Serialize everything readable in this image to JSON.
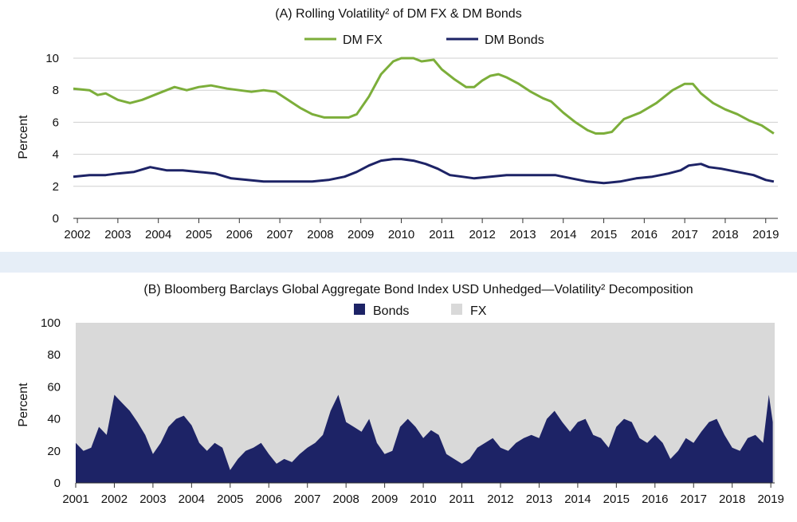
{
  "colors": {
    "fx_line": "#7cae3a",
    "bonds_line": "#1d2366",
    "bonds_area": "#1d2366",
    "fx_area": "#d9d9d9",
    "separator_band": "#e6eef7"
  },
  "chart_data": [
    {
      "type": "line",
      "title": "(A) Rolling Volatility² of DM FX & DM Bonds",
      "ylabel": "Percent",
      "xlabel": "",
      "xlim": [
        2001.9,
        2019.3
      ],
      "ylim": [
        0,
        10
      ],
      "yticks": [
        0,
        2,
        4,
        6,
        8,
        10
      ],
      "xticks": [
        2002,
        2003,
        2004,
        2005,
        2006,
        2007,
        2008,
        2009,
        2010,
        2011,
        2012,
        2013,
        2014,
        2015,
        2016,
        2017,
        2018,
        2019
      ],
      "grid": true,
      "legend_placement": "top-center",
      "series": [
        {
          "name": "DM FX",
          "x": [
            2001.9,
            2002.3,
            2002.5,
            2002.7,
            2003.0,
            2003.3,
            2003.6,
            2004.0,
            2004.4,
            2004.7,
            2005.0,
            2005.3,
            2005.7,
            2006.0,
            2006.3,
            2006.6,
            2006.9,
            2007.2,
            2007.5,
            2007.8,
            2008.1,
            2008.5,
            2008.7,
            2008.9,
            2009.2,
            2009.5,
            2009.8,
            2010.0,
            2010.3,
            2010.5,
            2010.8,
            2011.0,
            2011.3,
            2011.6,
            2011.8,
            2012.0,
            2012.2,
            2012.4,
            2012.6,
            2012.9,
            2013.2,
            2013.5,
            2013.7,
            2014.0,
            2014.3,
            2014.6,
            2014.8,
            2015.0,
            2015.2,
            2015.5,
            2015.9,
            2016.3,
            2016.7,
            2017.0,
            2017.2,
            2017.4,
            2017.7,
            2018.0,
            2018.3,
            2018.6,
            2018.9,
            2019.2
          ],
          "values": [
            8.1,
            8.0,
            7.7,
            7.8,
            7.4,
            7.2,
            7.4,
            7.8,
            8.2,
            8.0,
            8.2,
            8.3,
            8.1,
            8.0,
            7.9,
            8.0,
            7.9,
            7.4,
            6.9,
            6.5,
            6.3,
            6.3,
            6.3,
            6.5,
            7.6,
            9.0,
            9.8,
            10.0,
            10.0,
            9.8,
            9.9,
            9.3,
            8.7,
            8.2,
            8.2,
            8.6,
            8.9,
            9.0,
            8.8,
            8.4,
            7.9,
            7.5,
            7.3,
            6.6,
            6.0,
            5.5,
            5.3,
            5.3,
            5.4,
            6.2,
            6.6,
            7.2,
            8.0,
            8.4,
            8.4,
            7.8,
            7.2,
            6.8,
            6.5,
            6.1,
            5.8,
            5.3
          ]
        },
        {
          "name": "DM Bonds",
          "x": [
            2001.9,
            2002.3,
            2002.7,
            2003.0,
            2003.4,
            2003.8,
            2004.2,
            2004.6,
            2005.0,
            2005.4,
            2005.8,
            2006.2,
            2006.6,
            2007.0,
            2007.4,
            2007.8,
            2008.2,
            2008.6,
            2008.9,
            2009.2,
            2009.5,
            2009.8,
            2010.0,
            2010.3,
            2010.6,
            2010.9,
            2011.2,
            2011.5,
            2011.8,
            2012.2,
            2012.6,
            2013.0,
            2013.4,
            2013.8,
            2014.2,
            2014.6,
            2015.0,
            2015.4,
            2015.8,
            2016.2,
            2016.6,
            2016.9,
            2017.1,
            2017.4,
            2017.6,
            2017.9,
            2018.3,
            2018.7,
            2019.0,
            2019.2
          ],
          "values": [
            2.6,
            2.7,
            2.7,
            2.8,
            2.9,
            3.2,
            3.0,
            3.0,
            2.9,
            2.8,
            2.5,
            2.4,
            2.3,
            2.3,
            2.3,
            2.3,
            2.4,
            2.6,
            2.9,
            3.3,
            3.6,
            3.7,
            3.7,
            3.6,
            3.4,
            3.1,
            2.7,
            2.6,
            2.5,
            2.6,
            2.7,
            2.7,
            2.7,
            2.7,
            2.5,
            2.3,
            2.2,
            2.3,
            2.5,
            2.6,
            2.8,
            3.0,
            3.3,
            3.4,
            3.2,
            3.1,
            2.9,
            2.7,
            2.4,
            2.3
          ]
        }
      ]
    },
    {
      "type": "area",
      "stacked": true,
      "title": "(B) Bloomberg Barclays Global Aggregate Bond Index USD Unhedged—Volatility² Decomposition",
      "ylabel": "Percent",
      "xlabel": "",
      "xlim": [
        2001.0,
        2019.1
      ],
      "ylim": [
        0,
        100
      ],
      "yticks": [
        0,
        20,
        40,
        60,
        80,
        100
      ],
      "xticks": [
        2001,
        2002,
        2003,
        2004,
        2005,
        2006,
        2007,
        2008,
        2009,
        2010,
        2011,
        2012,
        2013,
        2014,
        2015,
        2016,
        2017,
        2018,
        2019
      ],
      "grid": false,
      "legend_placement": "top-center",
      "series": [
        {
          "name": "Bonds",
          "x": [
            2001.0,
            2001.2,
            2001.4,
            2001.6,
            2001.8,
            2002.0,
            2002.2,
            2002.4,
            2002.6,
            2002.8,
            2003.0,
            2003.2,
            2003.4,
            2003.6,
            2003.8,
            2004.0,
            2004.2,
            2004.4,
            2004.6,
            2004.8,
            2005.0,
            2005.2,
            2005.4,
            2005.6,
            2005.8,
            2006.0,
            2006.2,
            2006.4,
            2006.6,
            2006.8,
            2007.0,
            2007.2,
            2007.4,
            2007.6,
            2007.8,
            2008.0,
            2008.2,
            2008.4,
            2008.6,
            2008.8,
            2009.0,
            2009.2,
            2009.4,
            2009.6,
            2009.8,
            2010.0,
            2010.2,
            2010.4,
            2010.6,
            2010.8,
            2011.0,
            2011.2,
            2011.4,
            2011.6,
            2011.8,
            2012.0,
            2012.2,
            2012.4,
            2012.6,
            2012.8,
            2013.0,
            2013.2,
            2013.4,
            2013.6,
            2013.8,
            2014.0,
            2014.2,
            2014.4,
            2014.6,
            2014.8,
            2015.0,
            2015.2,
            2015.4,
            2015.6,
            2015.8,
            2016.0,
            2016.2,
            2016.4,
            2016.6,
            2016.8,
            2017.0,
            2017.2,
            2017.4,
            2017.6,
            2017.8,
            2018.0,
            2018.2,
            2018.4,
            2018.6,
            2018.8,
            2018.95,
            2019.05
          ],
          "values": [
            25,
            20,
            22,
            35,
            30,
            55,
            50,
            45,
            38,
            30,
            18,
            25,
            35,
            40,
            42,
            36,
            25,
            20,
            25,
            22,
            8,
            15,
            20,
            22,
            25,
            18,
            12,
            15,
            13,
            18,
            22,
            25,
            30,
            45,
            55,
            38,
            35,
            32,
            40,
            25,
            18,
            20,
            35,
            40,
            35,
            28,
            33,
            30,
            18,
            15,
            12,
            15,
            22,
            25,
            28,
            22,
            20,
            25,
            28,
            30,
            28,
            40,
            45,
            38,
            32,
            38,
            40,
            30,
            28,
            22,
            35,
            40,
            38,
            28,
            25,
            30,
            25,
            15,
            20,
            28,
            25,
            32,
            38,
            40,
            30,
            22,
            20,
            28,
            30,
            25,
            55,
            38
          ]
        },
        {
          "name": "FX",
          "note_complement": true
        }
      ]
    }
  ]
}
